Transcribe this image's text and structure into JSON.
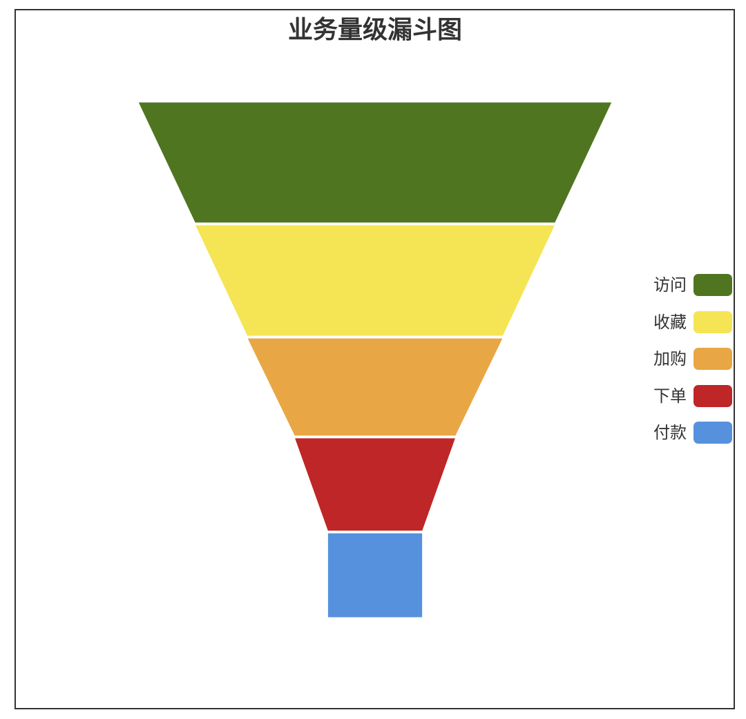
{
  "chart_data": {
    "type": "funnel",
    "title": "业务量级漏斗图",
    "categories": [
      "访问",
      "收藏",
      "加购",
      "下单",
      "付款"
    ],
    "values": [
      100,
      76,
      54,
      34,
      20
    ],
    "colors": [
      "#4f7520",
      "#f5e454",
      "#e8a744",
      "#bf2627",
      "#5591dd"
    ],
    "legend_position": "right",
    "stage_heights": [
      1.0,
      0.92,
      0.81,
      0.77,
      0.7
    ]
  }
}
